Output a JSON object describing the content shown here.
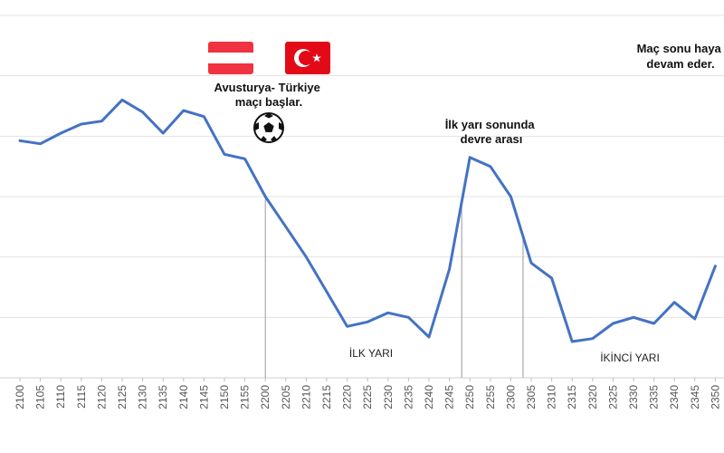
{
  "chart_data": {
    "type": "line",
    "title": "",
    "xlabel": "",
    "ylabel": "",
    "grid": true,
    "x": [
      "2100",
      "2105",
      "2110",
      "2115",
      "2120",
      "2125",
      "2130",
      "2135",
      "2140",
      "2145",
      "2150",
      "2155",
      "2200",
      "2205",
      "2210",
      "2215",
      "2220",
      "2225",
      "2230",
      "2235",
      "2240",
      "2245",
      "2250",
      "2255",
      "2300",
      "2305",
      "2310",
      "2315",
      "2320",
      "2325",
      "2330",
      "2335",
      "2340",
      "2345",
      "2350"
    ],
    "values": [
      78.5,
      77.5,
      81,
      84,
      85,
      92,
      88,
      81,
      88.5,
      86.5,
      74,
      72.5,
      60,
      50,
      40,
      28.5,
      17,
      18.5,
      21.5,
      20,
      13.5,
      36,
      73,
      70,
      60,
      38,
      33,
      12,
      13,
      18,
      20,
      18,
      25,
      19.5,
      37
    ],
    "ylim": [
      0,
      120
    ],
    "color": "#4472c4",
    "annotations": [
      {
        "lines": [
          "Avusturya- Türkiye",
          "maçı başlar."
        ],
        "at": "2200"
      },
      {
        "lines": [
          "İlk yarı sonunda",
          "devre arası"
        ],
        "at": "2250"
      },
      {
        "lines": [
          "Maç sonu haya",
          "devam eder."
        ],
        "at": "2345"
      }
    ],
    "phase_labels": [
      "İLK YARI",
      "İKİNCİ YARI"
    ],
    "markers_at": [
      "2200",
      "2248",
      "2303"
    ]
  },
  "icons": {
    "austria_flag": "austria-flag-icon",
    "turkey_flag": "turkey-flag-icon",
    "ball": "soccer-ball-icon",
    "austria_colors": [
      "#ef3340",
      "#ffffff"
    ],
    "turkey_color": "#e30a17"
  }
}
